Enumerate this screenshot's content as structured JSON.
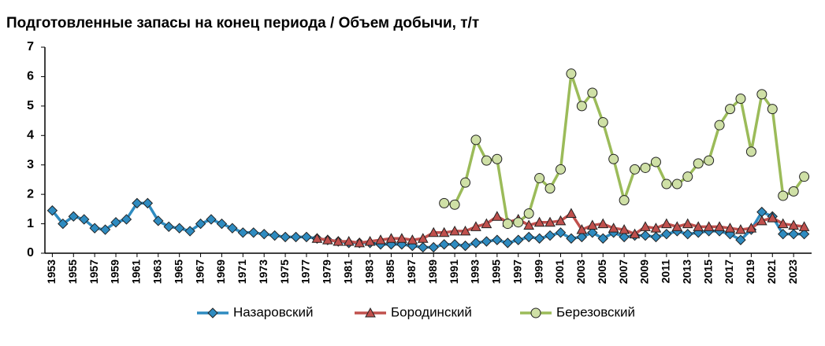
{
  "chart_data": {
    "type": "line",
    "title": "Подготовленные запасы на конец периода / Объем добычи, т/т",
    "x": [
      1953,
      1954,
      1955,
      1956,
      1957,
      1958,
      1959,
      1960,
      1961,
      1962,
      1963,
      1964,
      1965,
      1966,
      1967,
      1968,
      1969,
      1970,
      1971,
      1972,
      1973,
      1974,
      1975,
      1976,
      1977,
      1978,
      1979,
      1980,
      1981,
      1982,
      1983,
      1984,
      1985,
      1986,
      1987,
      1988,
      1989,
      1990,
      1991,
      1992,
      1993,
      1994,
      1995,
      1996,
      1997,
      1998,
      1999,
      2000,
      2001,
      2002,
      2003,
      2004,
      2005,
      2006,
      2007,
      2008,
      2009,
      2010,
      2011,
      2012,
      2013,
      2014,
      2015,
      2016,
      2017,
      2018,
      2019,
      2020,
      2021,
      2022,
      2023,
      2024
    ],
    "xlim": [
      1952.3,
      2024.7
    ],
    "xticks": [
      1953,
      1955,
      1957,
      1959,
      1961,
      1963,
      1965,
      1967,
      1969,
      1971,
      1973,
      1975,
      1977,
      1979,
      1981,
      1983,
      1985,
      1987,
      1989,
      1991,
      1993,
      1995,
      1997,
      1999,
      2001,
      2003,
      2005,
      2007,
      2009,
      2011,
      2013,
      2015,
      2017,
      2019,
      2021,
      2023
    ],
    "ylim": [
      0,
      7
    ],
    "yticks": [
      0,
      1,
      2,
      3,
      4,
      5,
      6,
      7
    ],
    "grid": false,
    "legend": "bottom",
    "series": [
      {
        "name": "Назаровский",
        "color": "#2e8bc0",
        "marker": "diamond",
        "values": [
          1.45,
          1.0,
          1.25,
          1.15,
          0.85,
          0.8,
          1.05,
          1.15,
          1.7,
          1.7,
          1.1,
          0.9,
          0.85,
          0.75,
          1.0,
          1.15,
          1.0,
          0.85,
          0.7,
          0.7,
          0.65,
          0.6,
          0.55,
          0.55,
          0.55,
          0.5,
          0.45,
          0.4,
          0.35,
          0.35,
          0.35,
          0.3,
          0.3,
          0.3,
          0.25,
          0.2,
          0.2,
          0.3,
          0.3,
          0.25,
          0.35,
          0.4,
          0.45,
          0.35,
          0.45,
          0.55,
          0.5,
          0.6,
          0.7,
          0.5,
          0.55,
          0.7,
          0.5,
          0.7,
          0.55,
          0.6,
          0.6,
          0.55,
          0.65,
          0.75,
          0.65,
          0.7,
          0.75,
          0.75,
          0.65,
          0.45,
          0.8,
          1.4,
          1.25,
          0.65,
          0.65,
          0.65
        ]
      },
      {
        "name": "Бородинский",
        "color": "#c0504d",
        "marker": "triangle",
        "values": [
          null,
          null,
          null,
          null,
          null,
          null,
          null,
          null,
          null,
          null,
          null,
          null,
          null,
          null,
          null,
          null,
          null,
          null,
          null,
          null,
          null,
          null,
          null,
          null,
          null,
          0.5,
          0.45,
          0.4,
          0.4,
          0.35,
          0.4,
          0.45,
          0.5,
          0.5,
          0.45,
          0.5,
          0.7,
          0.7,
          0.75,
          0.75,
          0.9,
          1.0,
          1.25,
          1.05,
          1.15,
          0.95,
          1.05,
          1.05,
          1.1,
          1.35,
          0.8,
          0.95,
          1.0,
          0.85,
          0.8,
          0.65,
          0.9,
          0.85,
          1.0,
          0.9,
          1.0,
          0.9,
          0.9,
          0.9,
          0.85,
          0.8,
          0.85,
          1.1,
          1.2,
          1.0,
          0.95,
          0.9
        ]
      },
      {
        "name": "Березовский",
        "color": "#9bbb59",
        "marker": "circle",
        "values": [
          null,
          null,
          null,
          null,
          null,
          null,
          null,
          null,
          null,
          null,
          null,
          null,
          null,
          null,
          null,
          null,
          null,
          null,
          null,
          null,
          null,
          null,
          null,
          null,
          null,
          null,
          null,
          null,
          null,
          null,
          null,
          null,
          null,
          null,
          null,
          null,
          null,
          1.7,
          1.65,
          2.4,
          3.85,
          3.15,
          3.2,
          1.0,
          1.05,
          1.35,
          2.55,
          2.2,
          2.85,
          6.1,
          5.0,
          5.45,
          4.45,
          3.2,
          1.8,
          2.85,
          2.9,
          3.1,
          2.35,
          2.35,
          2.6,
          3.05,
          3.15,
          4.35,
          4.9,
          5.25,
          3.45,
          5.4,
          4.9,
          1.95,
          2.1,
          2.6
        ]
      }
    ]
  }
}
